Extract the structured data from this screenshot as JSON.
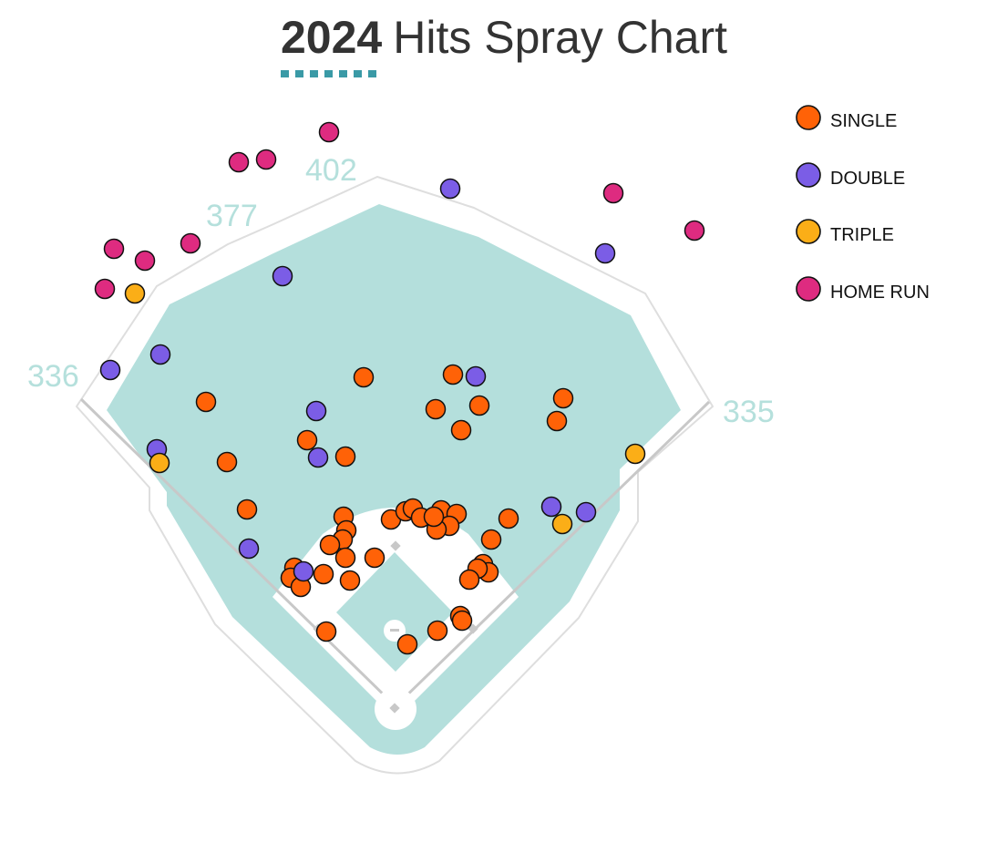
{
  "header": {
    "title_year": "2024",
    "title_rest": "Hits Spray Chart",
    "accent_color": "#3a9aa6"
  },
  "colors": {
    "field": "#b4dfdc",
    "infield_dirt": "#ffffff",
    "wall": "#dedede",
    "foul_line": "#c8c8c8",
    "distance_label": "#b5e0dc"
  },
  "chart_data": {
    "type": "scatter",
    "title": "2024 Hits Spray Chart",
    "field_distances": [
      {
        "key": "lf",
        "label": "336"
      },
      {
        "key": "lcf",
        "label": "377"
      },
      {
        "key": "cf",
        "label": "402"
      },
      {
        "key": "rf",
        "label": "335"
      }
    ],
    "legend": {
      "placement": "top-right"
    },
    "series": [
      {
        "name": "SINGLE",
        "color": "#ff6207",
        "points": [
          [
            399,
            414
          ],
          [
            497,
            411
          ],
          [
            526,
            445
          ],
          [
            478,
            449
          ],
          [
            506,
            472
          ],
          [
            618,
            437
          ],
          [
            611,
            462
          ],
          [
            226,
            441
          ],
          [
            337,
            483
          ],
          [
            379,
            501
          ],
          [
            249,
            507
          ],
          [
            271,
            559
          ],
          [
            558,
            569
          ],
          [
            539,
            592
          ],
          [
            429,
            570
          ],
          [
            445,
            561
          ],
          [
            453,
            558
          ],
          [
            462,
            568
          ],
          [
            484,
            560
          ],
          [
            501,
            564
          ],
          [
            493,
            577
          ],
          [
            479,
            581
          ],
          [
            476,
            567
          ],
          [
            377,
            567
          ],
          [
            380,
            582
          ],
          [
            376,
            592
          ],
          [
            362,
            598
          ],
          [
            411,
            612
          ],
          [
            379,
            612
          ],
          [
            355,
            630
          ],
          [
            323,
            623
          ],
          [
            319,
            634
          ],
          [
            330,
            644
          ],
          [
            384,
            637
          ],
          [
            530,
            619
          ],
          [
            536,
            628
          ],
          [
            524,
            624
          ],
          [
            515,
            636
          ],
          [
            505,
            676
          ],
          [
            507,
            681
          ],
          [
            480,
            692
          ],
          [
            447,
            707
          ],
          [
            358,
            693
          ]
        ]
      },
      {
        "name": "DOUBLE",
        "color": "#7b5de6",
        "points": [
          [
            494,
            207
          ],
          [
            664,
            278
          ],
          [
            310,
            303
          ],
          [
            176,
            389
          ],
          [
            121,
            406
          ],
          [
            522,
            413
          ],
          [
            347,
            451
          ],
          [
            349,
            502
          ],
          [
            172,
            493
          ],
          [
            605,
            556
          ],
          [
            643,
            562
          ],
          [
            273,
            602
          ],
          [
            333,
            627
          ]
        ]
      },
      {
        "name": "TRIPLE",
        "color": "#fbae17",
        "points": [
          [
            148,
            322
          ],
          [
            175,
            508
          ],
          [
            697,
            498
          ],
          [
            617,
            575
          ]
        ]
      },
      {
        "name": "HOME RUN",
        "color": "#de2b80",
        "points": [
          [
            361,
            145
          ],
          [
            262,
            178
          ],
          [
            292,
            175
          ],
          [
            673,
            212
          ],
          [
            762,
            253
          ],
          [
            209,
            267
          ],
          [
            125,
            273
          ],
          [
            159,
            286
          ],
          [
            115,
            317
          ]
        ]
      }
    ]
  }
}
